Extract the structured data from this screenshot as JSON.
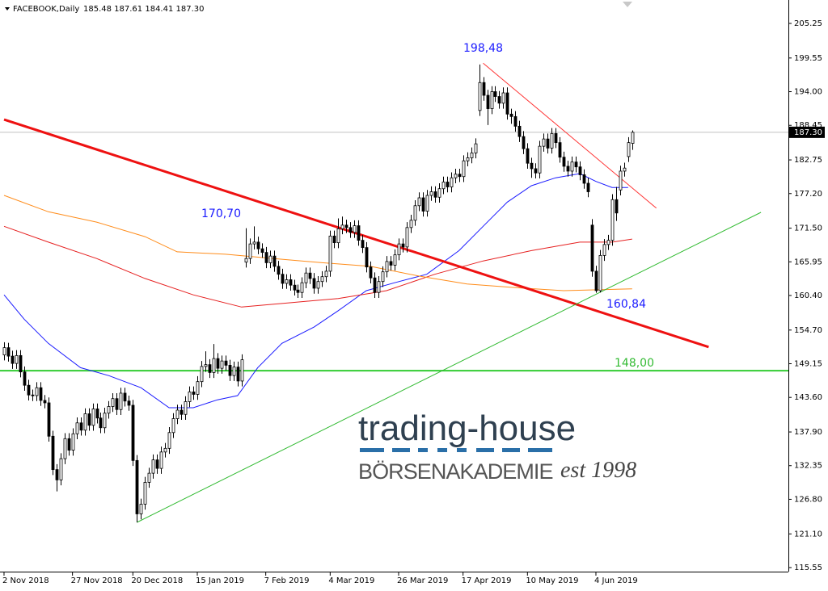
{
  "chart_data": {
    "type": "candlestick",
    "title": "FACEBOOK,Daily",
    "ohlc_label": "185.48 187.61 184.41 187.30",
    "xlim": [
      -1,
      194.8
    ],
    "ylim": [
      114.88,
      209.11
    ],
    "xticks": [
      {
        "value": 0,
        "label": "2 Nov 2018"
      },
      {
        "value": 17,
        "label": "27 Nov 2018"
      },
      {
        "value": 32,
        "label": "20 Dec 2018"
      },
      {
        "value": 48,
        "label": "15 Jan 2019"
      },
      {
        "value": 65,
        "label": "7 Feb 2019"
      },
      {
        "value": 81,
        "label": "4 Mar 2019"
      },
      {
        "value": 98,
        "label": "26 Mar 2019"
      },
      {
        "value": 114,
        "label": "17 Apr 2019"
      },
      {
        "value": 130,
        "label": "10 May 2019"
      },
      {
        "value": 147,
        "label": "4 Jun 2019"
      }
    ],
    "yticks": [
      205.25,
      199.55,
      {
        "value": 194,
        "label": "194.00"
      },
      188.45,
      182.75,
      {
        "value": 177.2,
        "label": "177.20"
      },
      {
        "value": 171.5,
        "label": "171.50"
      },
      165.95,
      {
        "value": 160.4,
        "label": "160.40"
      },
      {
        "value": 154.7,
        "label": "154.70"
      },
      149.15,
      {
        "value": 143.6,
        "label": "143.60"
      },
      {
        "value": 137.9,
        "label": "137.90"
      },
      132.35,
      {
        "value": 126.8,
        "label": "126.80"
      },
      {
        "value": 121.1,
        "label": "121.10"
      },
      115.55
    ],
    "open": [
      150.6,
      151.8,
      150.4,
      149.2,
      150.5,
      147.8,
      145.6,
      144.0,
      143.9,
      145.2,
      143.1,
      142.7,
      137.2,
      131.7,
      130.0,
      133.5,
      136.8,
      134.9,
      137.6,
      139.4,
      138.2,
      140.9,
      139.0,
      141.7,
      140.2,
      138.6,
      141.0,
      142.1,
      143.4,
      141.6,
      144.3,
      143.0,
      142.3,
      133.2,
      124.4,
      126.0,
      129.6,
      131.1,
      133.3,
      131.9,
      134.6,
      135.2,
      137.8,
      140.1,
      141.5,
      140.8,
      142.9,
      144.5,
      144.1,
      146.2,
      148.7,
      149.0,
      147.7,
      150.0,
      148.4,
      149.6,
      148.9,
      147.2,
      148.6,
      146.3,
      165.9,
      166.5,
      168.9,
      169.2,
      168.1,
      167.5,
      165.8,
      166.9,
      165.2,
      163.9,
      162.4,
      163.0,
      162.1,
      161.3,
      160.9,
      162.5,
      164.1,
      163.2,
      161.6,
      162.7,
      163.5,
      164.4,
      170.2,
      169.1,
      171.4,
      172.0,
      171.6,
      170.8,
      171.9,
      169.5,
      168.3,
      165.1,
      163.3,
      160.9,
      162.7,
      164.3,
      166.0,
      165.4,
      167.1,
      168.9,
      168.4,
      171.6,
      172.8,
      175.2,
      176.5,
      174.3,
      176.9,
      177.5,
      176.6,
      178.0,
      179.1,
      178.3,
      179.8,
      180.4,
      180.0,
      182.6,
      183.1,
      183.9,
      190.9,
      195.5,
      193.4,
      191.2,
      194.0,
      193.2,
      192.1,
      193.8,
      190.3,
      189.9,
      188.3,
      186.6,
      184.6,
      182.2,
      181.3,
      180.6,
      185.0,
      186.2,
      184.7,
      187.1,
      185.6,
      183.2,
      181.7,
      180.9,
      182.4,
      181.6,
      180.3,
      178.9,
      172.0,
      164.4,
      161.2,
      167.0,
      168.8,
      169.5,
      176.2,
      177.8,
      180.9,
      183.3,
      185.48
    ],
    "high": [
      152.7,
      152.6,
      151.3,
      151.4,
      151.4,
      148.7,
      146.5,
      144.9,
      146.1,
      146.1,
      144.0,
      143.6,
      138.1,
      132.6,
      134.4,
      137.7,
      137.7,
      138.5,
      140.3,
      140.3,
      141.8,
      141.8,
      142.6,
      142.6,
      141.1,
      141.9,
      143.0,
      144.3,
      144.3,
      145.2,
      145.2,
      143.9,
      143.2,
      134.1,
      126.9,
      130.5,
      132.0,
      134.2,
      134.2,
      135.5,
      136.1,
      138.7,
      141.0,
      142.4,
      142.4,
      143.8,
      145.4,
      145.4,
      147.1,
      149.6,
      151.2,
      149.9,
      152.4,
      150.9,
      150.5,
      150.5,
      149.8,
      149.5,
      149.5,
      150.7,
      171.5,
      169.8,
      171.8,
      170.1,
      169.0,
      168.4,
      167.8,
      167.8,
      166.1,
      164.8,
      163.9,
      163.9,
      163.0,
      162.2,
      163.4,
      165.0,
      165.0,
      164.1,
      163.6,
      164.4,
      165.3,
      171.1,
      171.1,
      173.1,
      173.4,
      172.9,
      172.5,
      172.8,
      172.8,
      170.4,
      169.2,
      166.0,
      164.2,
      163.6,
      165.2,
      166.9,
      166.9,
      168.0,
      169.8,
      169.8,
      172.5,
      173.7,
      176.1,
      177.4,
      177.4,
      177.8,
      178.4,
      178.4,
      178.9,
      180.0,
      180.0,
      180.7,
      181.3,
      181.3,
      183.5,
      184.0,
      184.8,
      186.3,
      198.48,
      196.4,
      194.3,
      194.9,
      194.9,
      194.1,
      194.7,
      194.7,
      191.2,
      190.8,
      189.2,
      187.5,
      185.5,
      183.1,
      182.2,
      185.9,
      187.1,
      187.1,
      188.0,
      188.0,
      186.5,
      184.1,
      182.6,
      183.3,
      183.3,
      182.5,
      181.2,
      179.8,
      173.0,
      165.3,
      167.9,
      169.7,
      170.4,
      177.1,
      178.3,
      181.8,
      182.3,
      186.5,
      187.61
    ],
    "low": [
      149.7,
      149.5,
      148.3,
      148.3,
      146.9,
      144.7,
      143.1,
      143.0,
      143.0,
      142.2,
      141.8,
      136.3,
      130.8,
      128.1,
      129.1,
      132.6,
      134.0,
      134.0,
      136.7,
      137.3,
      137.3,
      138.1,
      138.1,
      139.3,
      137.7,
      137.7,
      140.1,
      141.2,
      140.7,
      140.7,
      142.1,
      141.4,
      132.3,
      123.0,
      123.5,
      125.1,
      128.7,
      130.2,
      131.0,
      131.0,
      133.7,
      134.3,
      136.9,
      139.2,
      139.9,
      139.9,
      142.0,
      143.2,
      143.2,
      145.3,
      147.8,
      146.8,
      146.8,
      147.5,
      147.5,
      148.0,
      146.3,
      146.3,
      145.4,
      145.4,
      165.0,
      165.6,
      168.0,
      167.2,
      166.6,
      164.9,
      164.9,
      164.3,
      163.0,
      161.5,
      161.5,
      161.2,
      160.4,
      160.0,
      160.0,
      161.6,
      162.3,
      160.7,
      160.7,
      161.8,
      162.6,
      163.5,
      168.2,
      168.2,
      170.5,
      170.7,
      169.9,
      169.9,
      168.6,
      167.4,
      164.2,
      162.4,
      160.0,
      160.0,
      161.8,
      163.4,
      164.5,
      164.5,
      166.2,
      167.5,
      167.5,
      170.7,
      171.9,
      174.3,
      173.4,
      173.4,
      176.0,
      175.7,
      175.7,
      177.1,
      177.4,
      177.4,
      178.9,
      179.1,
      179.1,
      181.7,
      182.2,
      183.0,
      190.0,
      192.5,
      188.5,
      190.3,
      192.3,
      191.2,
      191.2,
      189.4,
      188.7,
      187.4,
      185.7,
      183.7,
      181.3,
      179.8,
      179.7,
      179.7,
      184.1,
      183.8,
      183.8,
      184.7,
      182.3,
      180.8,
      180.0,
      180.0,
      180.7,
      179.4,
      178.0,
      176.6,
      163.5,
      160.84,
      160.9,
      166.1,
      167.9,
      168.6,
      172.7,
      176.9,
      180.0,
      182.4,
      184.41
    ],
    "close": [
      151.8,
      150.4,
      149.2,
      150.5,
      147.8,
      145.6,
      144.0,
      143.9,
      145.2,
      143.1,
      142.7,
      137.2,
      131.7,
      130.0,
      133.5,
      136.8,
      134.9,
      137.6,
      139.4,
      138.2,
      140.9,
      139.0,
      141.7,
      140.2,
      138.6,
      141.0,
      142.1,
      143.4,
      141.6,
      144.3,
      143.0,
      142.3,
      133.2,
      124.4,
      126.0,
      129.6,
      131.1,
      133.3,
      131.9,
      134.6,
      135.2,
      137.8,
      140.1,
      141.5,
      140.8,
      142.9,
      144.5,
      144.1,
      146.2,
      148.7,
      149.0,
      147.7,
      150.0,
      148.4,
      149.6,
      148.9,
      147.2,
      148.6,
      146.3,
      149.8,
      166.5,
      168.9,
      169.2,
      168.1,
      167.5,
      165.8,
      166.9,
      165.2,
      163.9,
      162.4,
      163.0,
      162.1,
      161.3,
      160.9,
      162.5,
      164.1,
      163.2,
      161.6,
      162.7,
      163.5,
      164.4,
      170.2,
      169.1,
      171.4,
      172.0,
      171.6,
      170.8,
      171.9,
      169.5,
      168.3,
      165.1,
      163.3,
      160.9,
      162.7,
      164.3,
      166.0,
      165.4,
      167.1,
      168.9,
      168.4,
      171.6,
      172.8,
      175.2,
      176.5,
      174.3,
      176.9,
      177.5,
      176.6,
      178.0,
      179.1,
      178.3,
      179.8,
      180.4,
      180.0,
      182.6,
      183.1,
      183.9,
      185.4,
      195.5,
      193.4,
      191.2,
      194.0,
      193.2,
      192.1,
      193.8,
      190.3,
      189.9,
      188.3,
      186.6,
      184.6,
      182.2,
      181.3,
      180.6,
      185.0,
      186.2,
      184.7,
      187.1,
      185.6,
      183.2,
      181.7,
      180.9,
      182.4,
      181.6,
      180.3,
      178.9,
      177.5,
      164.4,
      161.2,
      167.0,
      168.8,
      169.5,
      176.2,
      174.0,
      180.9,
      181.4,
      185.6,
      187.3
    ],
    "bull_color": "#ffffff",
    "bear_color": "#000000",
    "lines": [
      {
        "color": "#1a1aff",
        "bold": false,
        "x": [
          0,
          5,
          11,
          19,
          26,
          34,
          41,
          47,
          53,
          58,
          63,
          69,
          77,
          83,
          90,
          97,
          105,
          113,
          119,
          125,
          131,
          137,
          143,
          147,
          151,
          155
        ],
        "values": [
          160.5,
          156.5,
          152.5,
          148.5,
          147.2,
          145.2,
          141.9,
          141.9,
          143.2,
          143.9,
          148.5,
          152.5,
          155.2,
          157.9,
          161.2,
          162.5,
          163.9,
          167.8,
          171.8,
          175.8,
          178.5,
          179.8,
          180.5,
          179.2,
          178.2,
          178.2
        ]
      },
      {
        "color": "#e62020",
        "bold": false,
        "x": [
          0,
          11,
          23,
          35,
          47,
          59,
          71,
          83,
          95,
          107,
          119,
          131,
          143,
          151,
          156
        ],
        "values": [
          171.8,
          169.2,
          166.5,
          163.2,
          160.5,
          158.5,
          159.2,
          159.9,
          161.2,
          163.9,
          166.1,
          167.8,
          169.2,
          169.2,
          169.7
        ]
      },
      {
        "color": "#ff8c1a",
        "bold": false,
        "x": [
          0,
          11,
          23,
          35,
          43,
          55,
          67,
          79,
          91,
          103,
          115,
          127,
          139,
          156
        ],
        "values": [
          176.9,
          174.2,
          172.5,
          170.1,
          167.6,
          167.2,
          166.5,
          165.8,
          165.2,
          163.6,
          162.3,
          161.7,
          161.2,
          161.5
        ]
      },
      {
        "color": "#ee1111",
        "bold": true,
        "x": [
          0,
          175
        ],
        "values": [
          189.4,
          151.9
        ]
      },
      {
        "color": "#ff3333",
        "bold": false,
        "x": [
          119,
          162
        ],
        "values": [
          198.7,
          174.8
        ]
      },
      {
        "color": "#33bb33",
        "bold": false,
        "x": [
          33,
          188
        ],
        "values": [
          123.0,
          174.1
        ]
      }
    ],
    "levels": [
      {
        "value": 148,
        "color": "#33cc33"
      }
    ],
    "last_price": {
      "value": 187.3,
      "label": "187.30"
    },
    "annotations": [
      "198,48",
      "170,70",
      "160,84",
      "148,00"
    ]
  },
  "logo": {
    "title": "trading-house",
    "subtitle": "BÖRSENAKADEMIE",
    "tagline": "est 1998"
  }
}
